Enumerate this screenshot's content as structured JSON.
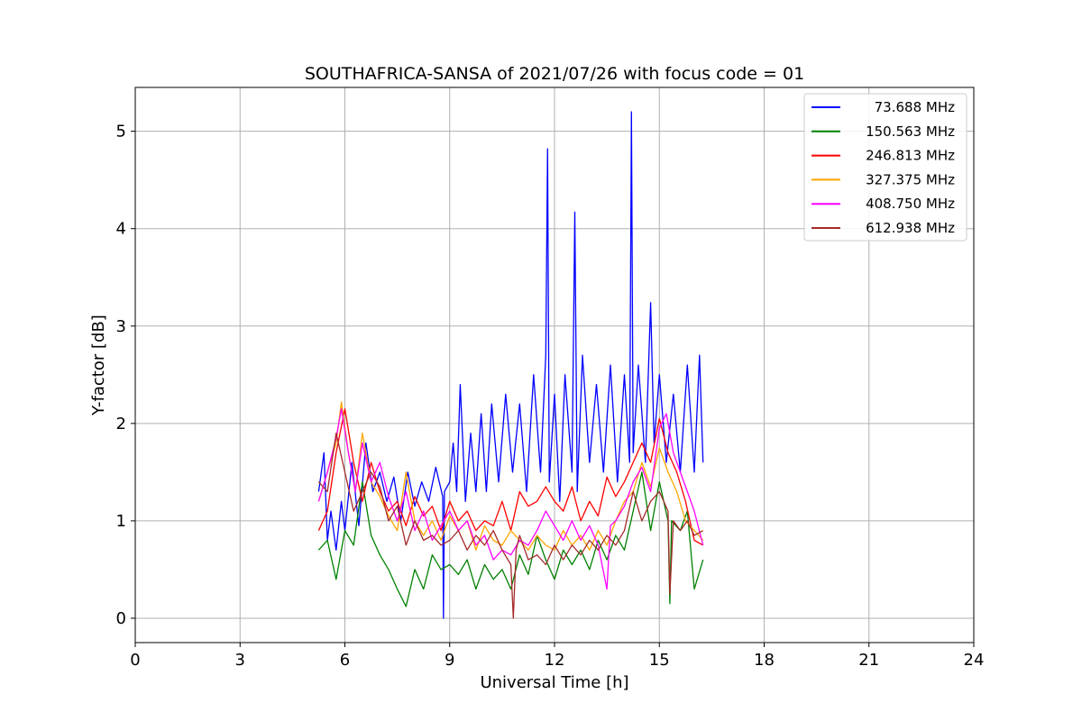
{
  "chart_data": {
    "type": "line",
    "title": "SOUTHAFRICA-SANSA of 2021/07/26 with focus code = 01",
    "xlabel": "Universal Time [h]",
    "ylabel": "Y-factor [dB]",
    "xlim": [
      0,
      24
    ],
    "ylim": [
      -0.25,
      5.45
    ],
    "xticks": [
      0,
      3,
      6,
      9,
      12,
      15,
      18,
      21,
      24
    ],
    "yticks": [
      0,
      1,
      2,
      3,
      4,
      5
    ],
    "grid": true,
    "legend_position": "top-right",
    "series": [
      {
        "name": "73.688 MHz",
        "color": "#0000ff",
        "points": [
          [
            5.25,
            1.3
          ],
          [
            5.4,
            1.7
          ],
          [
            5.5,
            0.8
          ],
          [
            5.6,
            1.1
          ],
          [
            5.75,
            0.7
          ],
          [
            5.9,
            1.2
          ],
          [
            6.0,
            0.9
          ],
          [
            6.2,
            1.6
          ],
          [
            6.4,
            0.95
          ],
          [
            6.6,
            1.8
          ],
          [
            6.8,
            1.3
          ],
          [
            7.0,
            1.5
          ],
          [
            7.2,
            1.2
          ],
          [
            7.4,
            1.45
          ],
          [
            7.6,
            1.0
          ],
          [
            7.8,
            1.5
          ],
          [
            8.0,
            1.15
          ],
          [
            8.2,
            1.4
          ],
          [
            8.4,
            1.2
          ],
          [
            8.6,
            1.55
          ],
          [
            8.8,
            1.25
          ],
          [
            8.82,
            0.0
          ],
          [
            8.85,
            1.3
          ],
          [
            9.0,
            1.4
          ],
          [
            9.1,
            1.8
          ],
          [
            9.2,
            1.3
          ],
          [
            9.3,
            2.4
          ],
          [
            9.45,
            1.2
          ],
          [
            9.6,
            1.9
          ],
          [
            9.75,
            1.3
          ],
          [
            9.9,
            2.1
          ],
          [
            10.05,
            1.3
          ],
          [
            10.2,
            2.2
          ],
          [
            10.4,
            1.4
          ],
          [
            10.6,
            2.3
          ],
          [
            10.8,
            1.5
          ],
          [
            11.0,
            2.2
          ],
          [
            11.2,
            1.3
          ],
          [
            11.4,
            2.5
          ],
          [
            11.6,
            1.5
          ],
          [
            11.75,
            2.7
          ],
          [
            11.8,
            4.82
          ],
          [
            11.85,
            1.4
          ],
          [
            12.0,
            2.3
          ],
          [
            12.15,
            1.2
          ],
          [
            12.3,
            2.5
          ],
          [
            12.5,
            1.5
          ],
          [
            12.58,
            4.17
          ],
          [
            12.65,
            1.3
          ],
          [
            12.8,
            2.7
          ],
          [
            13.0,
            1.6
          ],
          [
            13.2,
            2.4
          ],
          [
            13.4,
            1.5
          ],
          [
            13.6,
            2.6
          ],
          [
            13.8,
            1.4
          ],
          [
            14.0,
            2.5
          ],
          [
            14.15,
            1.6
          ],
          [
            14.2,
            5.2
          ],
          [
            14.25,
            1.7
          ],
          [
            14.4,
            2.6
          ],
          [
            14.6,
            1.6
          ],
          [
            14.75,
            3.24
          ],
          [
            14.85,
            1.8
          ],
          [
            15.0,
            2.5
          ],
          [
            15.2,
            1.6
          ],
          [
            15.4,
            2.3
          ],
          [
            15.6,
            1.5
          ],
          [
            15.8,
            2.6
          ],
          [
            16.0,
            1.5
          ],
          [
            16.15,
            2.7
          ],
          [
            16.25,
            1.6
          ]
        ]
      },
      {
        "name": "150.563 MHz",
        "color": "#008000",
        "points": [
          [
            5.25,
            0.7
          ],
          [
            5.5,
            0.8
          ],
          [
            5.75,
            0.4
          ],
          [
            6.0,
            0.9
          ],
          [
            6.25,
            0.75
          ],
          [
            6.5,
            1.4
          ],
          [
            6.75,
            0.85
          ],
          [
            7.0,
            0.65
          ],
          [
            7.25,
            0.5
          ],
          [
            7.5,
            0.3
          ],
          [
            7.75,
            0.12
          ],
          [
            8.0,
            0.5
          ],
          [
            8.25,
            0.3
          ],
          [
            8.5,
            0.65
          ],
          [
            8.75,
            0.5
          ],
          [
            9.0,
            0.55
          ],
          [
            9.25,
            0.45
          ],
          [
            9.5,
            0.6
          ],
          [
            9.75,
            0.3
          ],
          [
            10.0,
            0.55
          ],
          [
            10.25,
            0.4
          ],
          [
            10.5,
            0.5
          ],
          [
            10.75,
            0.3
          ],
          [
            11.0,
            0.65
          ],
          [
            11.25,
            0.45
          ],
          [
            11.5,
            0.85
          ],
          [
            11.75,
            0.6
          ],
          [
            12.0,
            0.4
          ],
          [
            12.25,
            0.7
          ],
          [
            12.5,
            0.55
          ],
          [
            12.75,
            0.7
          ],
          [
            13.0,
            0.5
          ],
          [
            13.25,
            0.8
          ],
          [
            13.5,
            0.6
          ],
          [
            13.75,
            0.85
          ],
          [
            14.0,
            0.7
          ],
          [
            14.25,
            1.1
          ],
          [
            14.5,
            1.5
          ],
          [
            14.75,
            0.9
          ],
          [
            15.0,
            1.4
          ],
          [
            15.25,
            1.0
          ],
          [
            15.3,
            0.15
          ],
          [
            15.35,
            1.0
          ],
          [
            15.6,
            0.9
          ],
          [
            15.8,
            1.1
          ],
          [
            16.0,
            0.3
          ],
          [
            16.25,
            0.6
          ]
        ]
      },
      {
        "name": "246.813 MHz",
        "color": "#ff0000",
        "points": [
          [
            5.25,
            0.9
          ],
          [
            5.5,
            1.1
          ],
          [
            5.75,
            1.7
          ],
          [
            6.0,
            2.15
          ],
          [
            6.25,
            1.6
          ],
          [
            6.5,
            1.2
          ],
          [
            6.75,
            1.6
          ],
          [
            7.0,
            1.3
          ],
          [
            7.25,
            1.1
          ],
          [
            7.5,
            1.2
          ],
          [
            7.75,
            0.95
          ],
          [
            8.0,
            1.25
          ],
          [
            8.25,
            1.05
          ],
          [
            8.5,
            1.15
          ],
          [
            8.75,
            0.9
          ],
          [
            9.0,
            1.2
          ],
          [
            9.25,
            1.0
          ],
          [
            9.5,
            1.1
          ],
          [
            9.75,
            0.9
          ],
          [
            10.0,
            1.0
          ],
          [
            10.25,
            0.95
          ],
          [
            10.5,
            1.2
          ],
          [
            10.75,
            0.9
          ],
          [
            11.0,
            1.3
          ],
          [
            11.25,
            1.15
          ],
          [
            11.5,
            1.2
          ],
          [
            11.75,
            1.35
          ],
          [
            12.0,
            1.2
          ],
          [
            12.25,
            1.1
          ],
          [
            12.5,
            1.35
          ],
          [
            12.75,
            1.0
          ],
          [
            13.0,
            1.2
          ],
          [
            13.25,
            1.05
          ],
          [
            13.5,
            1.45
          ],
          [
            13.75,
            1.25
          ],
          [
            14.0,
            1.4
          ],
          [
            14.25,
            1.6
          ],
          [
            14.5,
            1.8
          ],
          [
            14.75,
            1.6
          ],
          [
            15.0,
            2.05
          ],
          [
            15.25,
            1.7
          ],
          [
            15.5,
            1.5
          ],
          [
            15.75,
            1.2
          ],
          [
            16.0,
            0.8
          ],
          [
            16.25,
            0.75
          ]
        ]
      },
      {
        "name": "327.375 MHz",
        "color": "#ffa500",
        "points": [
          [
            5.25,
            1.2
          ],
          [
            5.5,
            1.5
          ],
          [
            5.75,
            1.8
          ],
          [
            5.9,
            2.22
          ],
          [
            6.1,
            1.7
          ],
          [
            6.3,
            1.3
          ],
          [
            6.5,
            1.9
          ],
          [
            6.75,
            1.4
          ],
          [
            7.0,
            1.25
          ],
          [
            7.25,
            1.05
          ],
          [
            7.5,
            0.9
          ],
          [
            7.75,
            1.5
          ],
          [
            8.0,
            1.0
          ],
          [
            8.25,
            0.85
          ],
          [
            8.5,
            1.0
          ],
          [
            8.75,
            0.8
          ],
          [
            9.0,
            1.05
          ],
          [
            9.25,
            0.9
          ],
          [
            9.5,
            1.0
          ],
          [
            9.75,
            0.7
          ],
          [
            10.0,
            0.95
          ],
          [
            10.25,
            0.8
          ],
          [
            10.5,
            0.75
          ],
          [
            10.75,
            0.9
          ],
          [
            11.0,
            0.8
          ],
          [
            11.25,
            0.7
          ],
          [
            11.5,
            0.85
          ],
          [
            11.75,
            0.75
          ],
          [
            12.0,
            0.7
          ],
          [
            12.25,
            0.9
          ],
          [
            12.5,
            0.75
          ],
          [
            12.75,
            0.85
          ],
          [
            13.0,
            0.7
          ],
          [
            13.25,
            0.9
          ],
          [
            13.5,
            0.75
          ],
          [
            13.75,
            1.0
          ],
          [
            14.0,
            1.2
          ],
          [
            14.25,
            1.3
          ],
          [
            14.5,
            1.6
          ],
          [
            14.75,
            1.35
          ],
          [
            15.0,
            1.75
          ],
          [
            15.25,
            1.5
          ],
          [
            15.5,
            1.3
          ],
          [
            15.75,
            1.0
          ],
          [
            16.0,
            0.9
          ],
          [
            16.25,
            0.8
          ]
        ]
      },
      {
        "name": "408.750 MHz",
        "color": "#ff00ff",
        "points": [
          [
            5.25,
            1.2
          ],
          [
            5.5,
            1.5
          ],
          [
            5.75,
            1.85
          ],
          [
            5.9,
            2.15
          ],
          [
            6.1,
            1.7
          ],
          [
            6.3,
            1.3
          ],
          [
            6.5,
            1.8
          ],
          [
            6.75,
            1.4
          ],
          [
            7.0,
            1.6
          ],
          [
            7.25,
            1.25
          ],
          [
            7.5,
            1.0
          ],
          [
            7.75,
            1.3
          ],
          [
            8.0,
            0.9
          ],
          [
            8.25,
            1.1
          ],
          [
            8.5,
            0.8
          ],
          [
            8.75,
            0.95
          ],
          [
            9.0,
            1.1
          ],
          [
            9.25,
            0.9
          ],
          [
            9.5,
            1.0
          ],
          [
            9.75,
            0.75
          ],
          [
            10.0,
            0.85
          ],
          [
            10.25,
            0.6
          ],
          [
            10.5,
            0.7
          ],
          [
            10.75,
            0.65
          ],
          [
            11.0,
            0.8
          ],
          [
            11.25,
            0.75
          ],
          [
            11.5,
            0.9
          ],
          [
            11.75,
            1.1
          ],
          [
            12.0,
            0.95
          ],
          [
            12.25,
            0.8
          ],
          [
            12.5,
            1.0
          ],
          [
            12.75,
            0.8
          ],
          [
            13.0,
            0.95
          ],
          [
            13.25,
            0.75
          ],
          [
            13.5,
            0.3
          ],
          [
            13.6,
            0.95
          ],
          [
            13.75,
            1.0
          ],
          [
            14.0,
            1.15
          ],
          [
            14.25,
            1.4
          ],
          [
            14.5,
            1.55
          ],
          [
            14.75,
            1.3
          ],
          [
            15.0,
            1.95
          ],
          [
            15.2,
            2.1
          ],
          [
            15.4,
            1.7
          ],
          [
            15.6,
            1.5
          ],
          [
            15.8,
            1.3
          ],
          [
            16.0,
            1.1
          ],
          [
            16.25,
            0.75
          ]
        ]
      },
      {
        "name": "612.938 MHz",
        "color": "#a52a2a",
        "points": [
          [
            5.25,
            1.4
          ],
          [
            5.5,
            1.3
          ],
          [
            5.75,
            1.9
          ],
          [
            6.0,
            1.5
          ],
          [
            6.25,
            1.1
          ],
          [
            6.5,
            1.3
          ],
          [
            6.75,
            1.5
          ],
          [
            7.0,
            1.35
          ],
          [
            7.25,
            1.0
          ],
          [
            7.5,
            1.15
          ],
          [
            7.75,
            0.75
          ],
          [
            8.0,
            1.0
          ],
          [
            8.25,
            0.8
          ],
          [
            8.5,
            0.85
          ],
          [
            8.75,
            0.75
          ],
          [
            9.0,
            0.8
          ],
          [
            9.25,
            0.9
          ],
          [
            9.5,
            0.7
          ],
          [
            9.75,
            0.85
          ],
          [
            10.0,
            0.75
          ],
          [
            10.25,
            0.9
          ],
          [
            10.5,
            0.7
          ],
          [
            10.75,
            0.55
          ],
          [
            10.82,
            0.0
          ],
          [
            10.9,
            0.7
          ],
          [
            11.0,
            0.85
          ],
          [
            11.25,
            0.6
          ],
          [
            11.5,
            0.65
          ],
          [
            11.75,
            0.55
          ],
          [
            12.0,
            0.75
          ],
          [
            12.25,
            0.6
          ],
          [
            12.5,
            0.75
          ],
          [
            12.75,
            0.65
          ],
          [
            13.0,
            0.8
          ],
          [
            13.25,
            0.7
          ],
          [
            13.5,
            0.85
          ],
          [
            13.75,
            0.75
          ],
          [
            14.0,
            0.9
          ],
          [
            14.25,
            1.3
          ],
          [
            14.5,
            1.0
          ],
          [
            14.75,
            1.2
          ],
          [
            15.0,
            1.3
          ],
          [
            15.25,
            1.1
          ],
          [
            15.3,
            0.25
          ],
          [
            15.4,
            1.0
          ],
          [
            15.6,
            0.9
          ],
          [
            15.8,
            1.0
          ],
          [
            16.0,
            0.85
          ],
          [
            16.25,
            0.9
          ]
        ]
      }
    ]
  }
}
